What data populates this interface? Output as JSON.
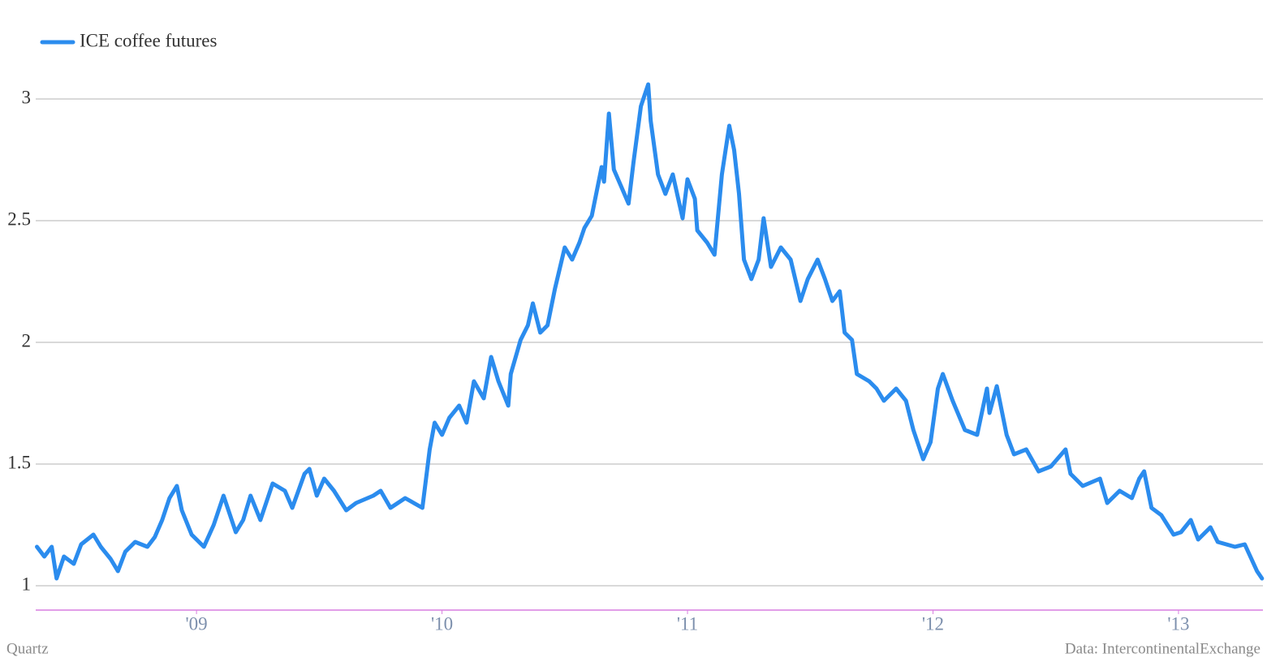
{
  "chart_data": {
    "type": "line",
    "xlim": [
      2008.345,
      2013.344
    ],
    "xticks": [
      {
        "value": 2009,
        "label": "'09"
      },
      {
        "value": 2010,
        "label": "'10"
      },
      {
        "value": 2011,
        "label": "'11"
      },
      {
        "value": 2012,
        "label": "'12"
      },
      {
        "value": 2013,
        "label": "'13"
      }
    ],
    "ylim": [
      0.9,
      3.1
    ],
    "yticks": [
      1,
      1.5,
      2,
      2.5,
      3
    ],
    "grid": true,
    "legend": "top-left",
    "source": "Data: IntercontinentalExchange",
    "credit": "Quartz",
    "x": [
      2008.35,
      2008.38,
      2008.41,
      2008.43,
      2008.46,
      2008.5,
      2008.53,
      2008.58,
      2008.61,
      2008.65,
      2008.68,
      2008.71,
      2008.75,
      2008.8,
      2008.83,
      2008.86,
      2008.89,
      2008.92,
      2008.94,
      2008.98,
      2009.03,
      2009.07,
      2009.11,
      2009.16,
      2009.19,
      2009.22,
      2009.26,
      2009.31,
      2009.36,
      2009.39,
      2009.44,
      2009.46,
      2009.49,
      2009.52,
      2009.56,
      2009.61,
      2009.65,
      2009.72,
      2009.75,
      2009.79,
      2009.85,
      2009.92,
      2009.95,
      2009.97,
      2010.0,
      2010.03,
      2010.07,
      2010.1,
      2010.13,
      2010.17,
      2010.2,
      2010.23,
      2010.27,
      2010.28,
      2010.32,
      2010.35,
      2010.37,
      2010.4,
      2010.43,
      2010.46,
      2010.5,
      2010.53,
      2010.56,
      2010.58,
      2010.61,
      2010.65,
      2010.66,
      2010.68,
      2010.7,
      2010.73,
      2010.76,
      2010.78,
      2010.81,
      2010.84,
      2010.85,
      2010.88,
      2010.91,
      2010.94,
      2010.98,
      2011.0,
      2011.03,
      2011.04,
      2011.08,
      2011.11,
      2011.14,
      2011.17,
      2011.19,
      2011.21,
      2011.23,
      2011.26,
      2011.29,
      2011.31,
      2011.34,
      2011.38,
      2011.42,
      2011.46,
      2011.49,
      2011.53,
      2011.56,
      2011.59,
      2011.62,
      2011.64,
      2011.67,
      2011.69,
      2011.74,
      2011.77,
      2011.8,
      2011.85,
      2011.89,
      2011.92,
      2011.96,
      2011.99,
      2012.02,
      2012.04,
      2012.08,
      2012.13,
      2012.18,
      2012.22,
      2012.23,
      2012.26,
      2012.3,
      2012.33,
      2012.38,
      2012.43,
      2012.48,
      2012.54,
      2012.56,
      2012.61,
      2012.68,
      2012.71,
      2012.76,
      2012.81,
      2012.84,
      2012.86,
      2012.89,
      2012.93,
      2012.98,
      2013.01,
      2013.05,
      2013.08,
      2013.13,
      2013.16,
      2013.23,
      2013.27,
      2013.32,
      2013.34
    ],
    "series": [
      {
        "name": "ICE coffee futures",
        "color": "#2b8cee",
        "values": [
          1.16,
          1.12,
          1.16,
          1.03,
          1.12,
          1.09,
          1.17,
          1.21,
          1.16,
          1.11,
          1.06,
          1.14,
          1.18,
          1.16,
          1.2,
          1.27,
          1.36,
          1.41,
          1.31,
          1.21,
          1.16,
          1.25,
          1.37,
          1.22,
          1.27,
          1.37,
          1.27,
          1.42,
          1.39,
          1.32,
          1.46,
          1.48,
          1.37,
          1.44,
          1.39,
          1.31,
          1.34,
          1.37,
          1.39,
          1.32,
          1.36,
          1.32,
          1.56,
          1.67,
          1.62,
          1.69,
          1.74,
          1.67,
          1.84,
          1.77,
          1.94,
          1.84,
          1.74,
          1.87,
          2.01,
          2.07,
          2.16,
          2.04,
          2.07,
          2.22,
          2.39,
          2.34,
          2.41,
          2.47,
          2.52,
          2.72,
          2.66,
          2.94,
          2.71,
          2.64,
          2.57,
          2.74,
          2.97,
          3.06,
          2.91,
          2.69,
          2.61,
          2.69,
          2.51,
          2.67,
          2.59,
          2.46,
          2.41,
          2.36,
          2.69,
          2.89,
          2.79,
          2.61,
          2.34,
          2.26,
          2.34,
          2.51,
          2.31,
          2.39,
          2.34,
          2.17,
          2.26,
          2.34,
          2.26,
          2.17,
          2.21,
          2.04,
          2.01,
          1.87,
          1.84,
          1.81,
          1.76,
          1.81,
          1.76,
          1.64,
          1.52,
          1.59,
          1.81,
          1.87,
          1.76,
          1.64,
          1.62,
          1.81,
          1.71,
          1.82,
          1.62,
          1.54,
          1.56,
          1.47,
          1.49,
          1.56,
          1.46,
          1.41,
          1.44,
          1.34,
          1.39,
          1.36,
          1.44,
          1.47,
          1.32,
          1.29,
          1.21,
          1.22,
          1.27,
          1.19,
          1.24,
          1.18,
          1.16,
          1.17,
          1.06,
          1.03
        ]
      }
    ]
  }
}
